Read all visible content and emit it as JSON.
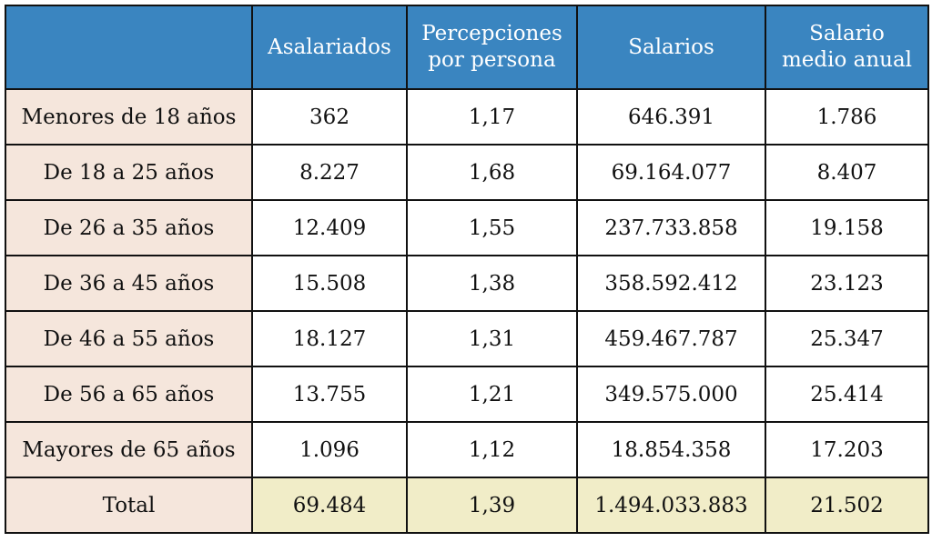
{
  "chart_data": {
    "type": "table",
    "columns": [
      "",
      "Asalariados",
      "Percepciones por persona",
      "Salarios",
      "Salario medio anual"
    ],
    "rows": [
      {
        "label": "Menores de 18 años",
        "values": [
          "362",
          "1,17",
          "646.391",
          "1.786"
        ]
      },
      {
        "label": "De 18 a 25 años",
        "values": [
          "8.227",
          "1,68",
          "69.164.077",
          "8.407"
        ]
      },
      {
        "label": "De 26 a 35 años",
        "values": [
          "12.409",
          "1,55",
          "237.733.858",
          "19.158"
        ]
      },
      {
        "label": "De 36 a 45 años",
        "values": [
          "15.508",
          "1,38",
          "358.592.412",
          "23.123"
        ]
      },
      {
        "label": "De 46 a 55 años",
        "values": [
          "18.127",
          "1,31",
          "459.467.787",
          "25.347"
        ]
      },
      {
        "label": "De 56 a 65 años",
        "values": [
          "13.755",
          "1,21",
          "349.575.000",
          "25.414"
        ]
      },
      {
        "label": "Mayores de 65 años",
        "values": [
          "1.096",
          "1,12",
          "18.854.358",
          "17.203"
        ]
      }
    ],
    "total": {
      "label": "Total",
      "values": [
        "69.484",
        "1,39",
        "1.494.033.883",
        "21.502"
      ]
    },
    "colors": {
      "header": "#3a85c0",
      "row_label": "#f5e6dc",
      "total_row": "#f1edc8"
    }
  }
}
